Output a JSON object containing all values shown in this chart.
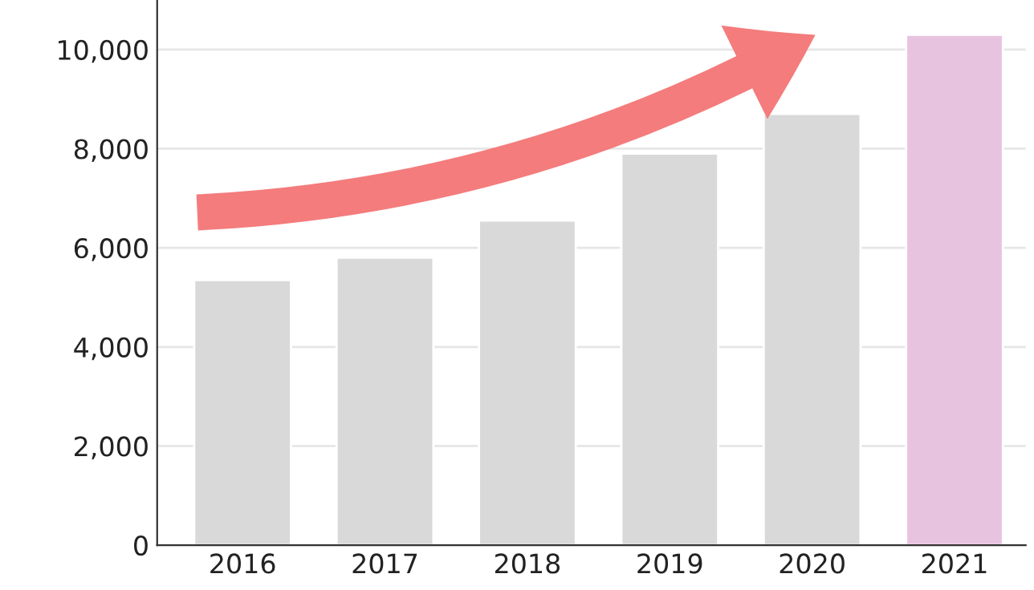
{
  "chart_data": {
    "type": "bar",
    "categories": [
      "2016",
      "2017",
      "2018",
      "2019",
      "2020",
      "2021"
    ],
    "values": [
      5350,
      5800,
      6550,
      7900,
      8700,
      10300
    ],
    "colors": [
      "#d9d9d9",
      "#d9d9d9",
      "#d9d9d9",
      "#d9d9d9",
      "#d9d9d9",
      "#e8c3e0"
    ],
    "ylim": [
      0,
      11000
    ],
    "yticks": [
      {
        "value": 0,
        "label": "0"
      },
      {
        "value": 2000,
        "label": "2,000"
      },
      {
        "value": 4000,
        "label": "4,000"
      },
      {
        "value": 6000,
        "label": "6,000"
      },
      {
        "value": 8000,
        "label": "8,000"
      },
      {
        "value": 10000,
        "label": "10,000"
      }
    ],
    "grid": "y",
    "legend": false
  }
}
